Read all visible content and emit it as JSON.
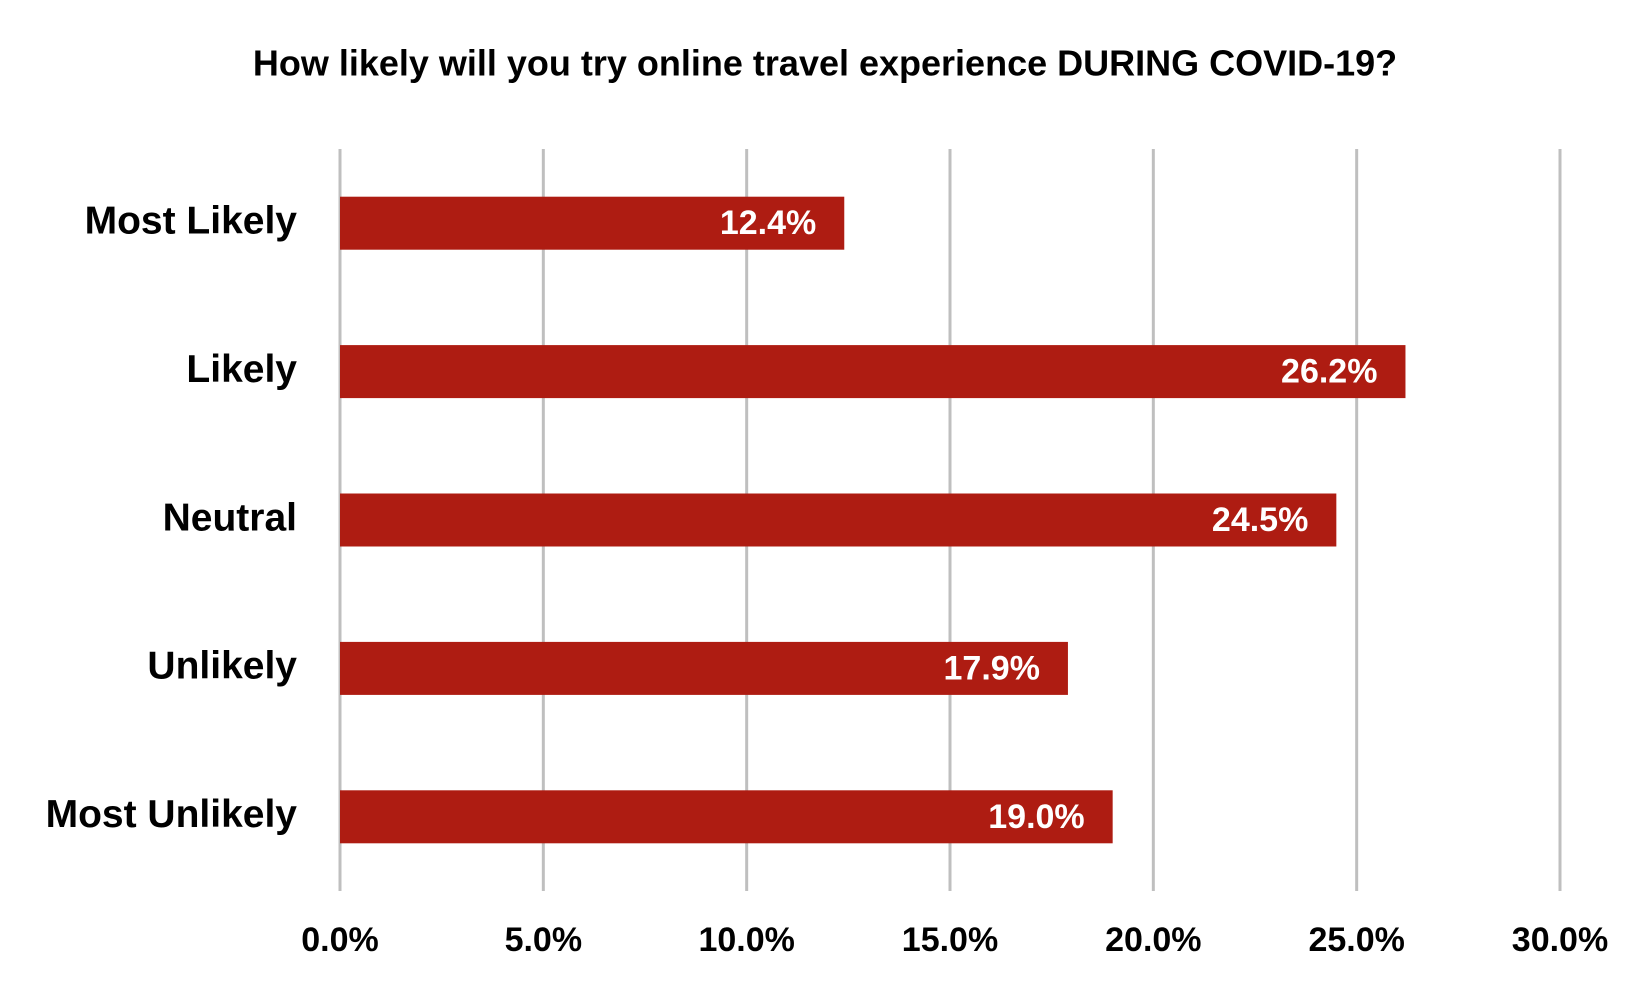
{
  "chart_data": {
    "type": "bar",
    "orientation": "horizontal",
    "title": "How likely will you try online travel experience DURING COVID-19?",
    "categories": [
      "Most Likely",
      "Likely",
      "Neutral",
      "Unlikely",
      "Most Unlikely"
    ],
    "values": [
      12.4,
      26.2,
      24.5,
      17.9,
      19.0
    ],
    "value_labels": [
      "12.4%",
      "26.2%",
      "24.5%",
      "17.9%",
      "19.0%"
    ],
    "color": "#ae1c12",
    "xlim": [
      0,
      30
    ],
    "xticks": [
      {
        "value": 0,
        "label": "0.0%"
      },
      {
        "value": 5,
        "label": "5.0%"
      },
      {
        "value": 10,
        "label": "10.0%"
      },
      {
        "value": 15,
        "label": "15.0%"
      },
      {
        "value": 20,
        "label": "20.0%"
      },
      {
        "value": 25,
        "label": "25.0%"
      },
      {
        "value": 30,
        "label": "30.0%"
      }
    ],
    "grid": true
  }
}
